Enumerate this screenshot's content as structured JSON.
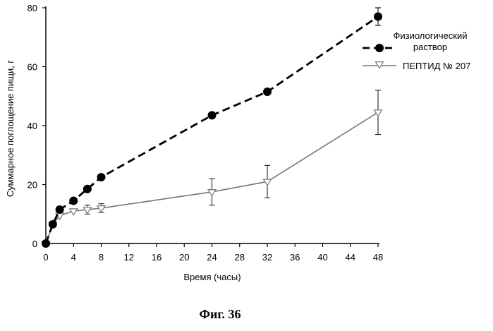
{
  "figure_caption": "Фиг. 36",
  "chart_data": {
    "type": "line",
    "xlabel": "Время (часы)",
    "ylabel": "Суммарное поглощение пищи, г",
    "xlim": [
      0,
      48
    ],
    "ylim": [
      0,
      80
    ],
    "xticks": [
      0,
      4,
      8,
      12,
      16,
      20,
      24,
      28,
      32,
      36,
      40,
      44,
      48
    ],
    "yticks": [
      0,
      20,
      40,
      60,
      80
    ],
    "grid": false,
    "legend_position": "top-right",
    "series": [
      {
        "name": "Физиологический раствор",
        "legend_lines": [
          "Физиологический",
          "раствор"
        ],
        "line_style": "dashed",
        "marker": "filled-circle",
        "color": "#000000",
        "x": [
          0,
          1,
          2,
          4,
          6,
          8,
          24,
          32,
          48
        ],
        "y": [
          0,
          6.5,
          11.5,
          14.5,
          18.5,
          22.5,
          43.5,
          51.5,
          77
        ],
        "error": [
          0,
          0,
          0,
          0,
          0,
          0,
          0,
          0,
          3
        ]
      },
      {
        "name": "ПЕПТИД № 207",
        "legend_lines": [
          "ПЕПТИД №  207"
        ],
        "line_style": "solid",
        "marker": "open-triangle-down",
        "color": "#777777",
        "x": [
          0,
          1,
          2,
          4,
          6,
          8,
          24,
          32,
          48
        ],
        "y": [
          0,
          6.5,
          9.5,
          11,
          11.5,
          12,
          17.5,
          21,
          44.5
        ],
        "error": [
          0,
          0,
          0,
          0,
          1.5,
          1.5,
          4.5,
          5.5,
          7.5
        ]
      }
    ]
  }
}
